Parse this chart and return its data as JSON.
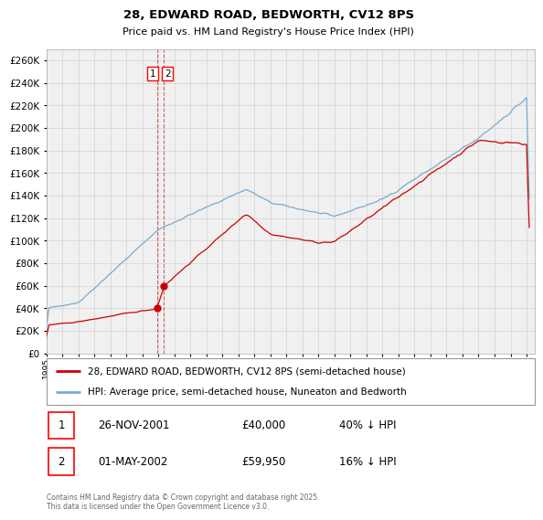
{
  "title": "28, EDWARD ROAD, BEDWORTH, CV12 8PS",
  "subtitle": "Price paid vs. HM Land Registry's House Price Index (HPI)",
  "ylim": [
    0,
    270000
  ],
  "yticks": [
    0,
    20000,
    40000,
    60000,
    80000,
    100000,
    120000,
    140000,
    160000,
    180000,
    200000,
    220000,
    240000,
    260000
  ],
  "red_color": "#cc0000",
  "blue_color": "#7aabcf",
  "dashed_color": "#cc0000",
  "legend_label_red": "28, EDWARD ROAD, BEDWORTH, CV12 8PS (semi-detached house)",
  "legend_label_blue": "HPI: Average price, semi-detached house, Nuneaton and Bedworth",
  "transaction1_date": "26-NOV-2001",
  "transaction1_price": "£40,000",
  "transaction1_note": "40% ↓ HPI",
  "transaction2_date": "01-MAY-2002",
  "transaction2_price": "£59,950",
  "transaction2_note": "16% ↓ HPI",
  "footer": "Contains HM Land Registry data © Crown copyright and database right 2025.\nThis data is licensed under the Open Government Licence v3.0.",
  "transaction1_x": 2001.9,
  "transaction2_x": 2002.33,
  "background_color": "#f0f0f0",
  "grid_color": "#cccccc",
  "title_fontsize": 9.5,
  "subtitle_fontsize": 8.0
}
